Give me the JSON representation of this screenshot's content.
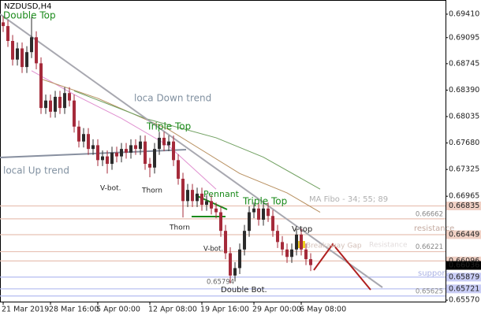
{
  "chart_data": {
    "type": "candlestick",
    "title": "NZDUSD,H4",
    "ylim": [
      0.6555,
      0.696
    ],
    "xlim": [
      -0.67,
      93.5
    ],
    "yticks": [
      {
        "value": 0.6941,
        "label": "0.69410"
      },
      0.69095,
      0.68745,
      {
        "value": 0.6839,
        "label": "0.68390"
      },
      0.68035,
      {
        "value": 0.6768,
        "label": "0.67680"
      },
      0.67325,
      0.66965,
      {
        "value": 0.6557,
        "label": "0.65570"
      }
    ],
    "xticks": [
      {
        "value": 0,
        "label": "21 Mar 2019"
      },
      {
        "value": 10,
        "label": "28 Mar 16:00"
      },
      {
        "value": 20,
        "label": "5 Apr 00:00"
      },
      {
        "value": 31,
        "label": "12 Apr 08:00"
      },
      {
        "value": 42,
        "label": "19 Apr 16:00"
      },
      {
        "value": 53,
        "label": "29 Apr 00:00"
      },
      {
        "value": 63,
        "label": "6 May 08:00"
      }
    ],
    "up_color": "#2b2b2b",
    "down_color": "#a52a3a",
    "open": [
      0.693,
      0.6925,
      0.6905,
      0.688,
      0.6895,
      0.687,
      0.689,
      0.691,
      0.6875,
      0.6815,
      0.6825,
      0.681,
      0.683,
      0.6815,
      0.6835,
      0.6825,
      0.679,
      0.677,
      0.678,
      0.676,
      0.6765,
      0.6745,
      0.675,
      0.674,
      0.6755,
      0.675,
      0.676,
      0.6755,
      0.6765,
      0.676,
      0.677,
      0.674,
      0.6735,
      0.676,
      0.6775,
      0.6765,
      0.677,
      0.6745,
      0.672,
      0.669,
      0.6705,
      0.669,
      0.67,
      0.6685,
      0.669,
      0.668,
      0.6675,
      0.665,
      0.662,
      0.659,
      0.66,
      0.6625,
      0.665,
      0.6675,
      0.668,
      0.6665,
      0.668,
      0.667,
      0.665,
      0.6635,
      0.6625,
      0.6615,
      0.6625,
      0.6645,
      0.6625,
      0.6612
    ],
    "high": [
      0.6938,
      0.6933,
      0.6913,
      0.6903,
      0.6903,
      0.6898,
      0.6937,
      0.6918,
      0.6883,
      0.6833,
      0.6833,
      0.6838,
      0.6838,
      0.6843,
      0.6843,
      0.6833,
      0.6798,
      0.6788,
      0.6788,
      0.6773,
      0.6773,
      0.6758,
      0.6758,
      0.6763,
      0.6763,
      0.6768,
      0.6768,
      0.6773,
      0.6773,
      0.6778,
      0.6778,
      0.6748,
      0.6768,
      0.6783,
      0.6783,
      0.6778,
      0.6778,
      0.6753,
      0.6728,
      0.6713,
      0.6713,
      0.6708,
      0.6708,
      0.6698,
      0.6698,
      0.6688,
      0.6683,
      0.6658,
      0.6628,
      0.6608,
      0.6633,
      0.6658,
      0.6683,
      0.6688,
      0.6688,
      0.6688,
      0.6688,
      0.6678,
      0.6658,
      0.6643,
      0.6633,
      0.6633,
      0.6653,
      0.6653,
      0.6633,
      0.662
    ],
    "low": [
      0.6917,
      0.6897,
      0.6872,
      0.6872,
      0.6862,
      0.6862,
      0.6882,
      0.6867,
      0.6807,
      0.6807,
      0.6802,
      0.6802,
      0.6807,
      0.6807,
      0.6817,
      0.6782,
      0.6762,
      0.6762,
      0.6752,
      0.6752,
      0.6737,
      0.6737,
      0.6727,
      0.6732,
      0.6742,
      0.6742,
      0.6747,
      0.6747,
      0.6752,
      0.6752,
      0.6732,
      0.6722,
      0.6727,
      0.6752,
      0.6757,
      0.6757,
      0.6737,
      0.6712,
      0.6668,
      0.6682,
      0.6682,
      0.6682,
      0.6677,
      0.6677,
      0.6672,
      0.6667,
      0.6642,
      0.6612,
      0.65794,
      0.6582,
      0.6592,
      0.6617,
      0.6642,
      0.6667,
      0.6657,
      0.6657,
      0.6662,
      0.6642,
      0.6627,
      0.6617,
      0.6607,
      0.6607,
      0.6617,
      0.6617,
      0.6604,
      0.6596
    ],
    "close": [
      0.6925,
      0.6905,
      0.688,
      0.6895,
      0.687,
      0.689,
      0.691,
      0.6875,
      0.6815,
      0.6825,
      0.681,
      0.683,
      0.6815,
      0.6835,
      0.6825,
      0.679,
      0.677,
      0.678,
      0.676,
      0.6765,
      0.6745,
      0.675,
      0.674,
      0.6755,
      0.675,
      0.676,
      0.6755,
      0.6765,
      0.676,
      0.677,
      0.674,
      0.6735,
      0.676,
      0.6775,
      0.6765,
      0.677,
      0.6745,
      0.672,
      0.669,
      0.6705,
      0.669,
      0.67,
      0.6685,
      0.669,
      0.668,
      0.6675,
      0.665,
      0.662,
      0.659,
      0.66,
      0.6625,
      0.665,
      0.6675,
      0.668,
      0.6665,
      0.668,
      0.667,
      0.665,
      0.6635,
      0.6625,
      0.6615,
      0.6625,
      0.6645,
      0.6625,
      0.6612,
      0.6604
    ],
    "moving_averages": [
      {
        "color": "#e090d0",
        "x": [
          6,
          15,
          25,
          35,
          45
        ],
        "values": [
          0.6865,
          0.6833,
          0.6801,
          0.6764,
          0.6706
        ]
      },
      {
        "color": "#b89060",
        "x": [
          8,
          20,
          35,
          50,
          60,
          67
        ],
        "values": [
          0.6854,
          0.6828,
          0.6786,
          0.6727,
          0.6701,
          0.6675
        ]
      },
      {
        "color": "#70a060",
        "x": [
          15,
          30,
          45,
          55,
          67
        ],
        "values": [
          0.6838,
          0.6801,
          0.6775,
          0.6749,
          0.6706
        ]
      }
    ],
    "levels": [
      {
        "value": 0.66835,
        "color": "#e8c2b4",
        "tag": "axis",
        "box": "#f0d0c4"
      },
      {
        "value": 0.66662,
        "color": "#e8c2b4",
        "tag": "plot"
      },
      {
        "value": 0.66449,
        "color": "#e8c2b4",
        "tag": "axis",
        "box": "#f0d0c4"
      },
      {
        "value": 0.66221,
        "color": "#e8c2b4",
        "tag": "plot"
      },
      {
        "value": 0.66096,
        "color": "#e8c2b4",
        "tag": "axis",
        "box": "#f0d0c4"
      },
      {
        "value": 0.66036,
        "color": "#000000",
        "tag": "axis",
        "box": "#000000"
      },
      {
        "value": 0.65879,
        "color": "#b4bcf0",
        "tag": "axis",
        "box": "#c8ccf5"
      },
      {
        "value": 0.65721,
        "color": "#b4bcf0",
        "tag": "axis",
        "box": "#c8ccf5"
      },
      {
        "value": 0.65625,
        "color": "#b4bcf0",
        "tag": "plot"
      }
    ],
    "price_notes": [
      0.65794
    ],
    "annotations": [
      "Double Top",
      "loca Down trend",
      "Triple Top",
      "local Up trend",
      "V-bot.",
      "Thorn",
      "Thorn",
      "Pennant",
      "Triple Top",
      "V-top",
      "V-bot.",
      "Double Bot.",
      "MA Fibo - 34; 55; 89",
      "resistance",
      "Breakaway Gap",
      "support",
      "Resistance"
    ]
  }
}
